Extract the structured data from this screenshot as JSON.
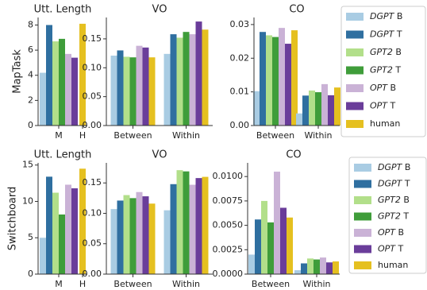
{
  "chart_data": [
    {
      "type": "bar",
      "title": "Utt. Length",
      "ylabel": "MapTask",
      "categories": [
        "M",
        "H"
      ],
      "ylim": [
        0,
        8.6
      ],
      "yticks": [
        0,
        2,
        4,
        6,
        8
      ],
      "series": [
        {
          "name": "DGPT B",
          "color": "#a9cce3",
          "values": [
            4.2,
            null
          ]
        },
        {
          "name": "DGPT T",
          "color": "#2f6fa0",
          "values": [
            8.0,
            null
          ]
        },
        {
          "name": "GPT2 B",
          "color": "#b2df8a",
          "values": [
            6.7,
            null
          ]
        },
        {
          "name": "GPT2 T",
          "color": "#3f9d3a",
          "values": [
            6.9,
            null
          ]
        },
        {
          "name": "OPT B",
          "color": "#cab2d6",
          "values": [
            5.7,
            null
          ]
        },
        {
          "name": "OPT T",
          "color": "#6a3d9a",
          "values": [
            5.4,
            null
          ]
        },
        {
          "name": "human",
          "color": "#e5c020",
          "values": [
            null,
            8.1
          ]
        }
      ]
    },
    {
      "type": "bar",
      "title": "VO",
      "categories": [
        "Between",
        "Within"
      ],
      "ylim": [
        0,
        0.187
      ],
      "yticks": [
        {
          "value": 0,
          "label": "0.00"
        },
        0.05,
        {
          "value": 0.1,
          "label": "0.10"
        },
        0.15
      ],
      "series": [
        {
          "name": "DGPT B",
          "color": "#a9cce3",
          "values": [
            0.121,
            0.124
          ]
        },
        {
          "name": "DGPT T",
          "color": "#2f6fa0",
          "values": [
            0.13,
            0.158
          ]
        },
        {
          "name": "GPT2 B",
          "color": "#b2df8a",
          "values": [
            0.119,
            0.152
          ]
        },
        {
          "name": "GPT2 T",
          "color": "#3f9d3a",
          "values": [
            0.118,
            0.162
          ]
        },
        {
          "name": "OPT B",
          "color": "#cab2d6",
          "values": [
            0.138,
            0.158
          ]
        },
        {
          "name": "OPT T",
          "color": "#6a3d9a",
          "values": [
            0.135,
            0.18
          ]
        },
        {
          "name": "human",
          "color": "#e5c020",
          "values": [
            0.118,
            0.166
          ]
        }
      ]
    },
    {
      "type": "bar",
      "title": "CO",
      "categories": [
        "Between",
        "Within"
      ],
      "legend": true,
      "ylim": [
        0,
        0.0321
      ],
      "yticks": [
        {
          "value": 0,
          "label": "0.00"
        },
        0.01,
        0.02,
        0.03
      ],
      "series": [
        {
          "name": "DGPT B",
          "color": "#a9cce3",
          "values": [
            0.0102,
            0.0036
          ]
        },
        {
          "name": "DGPT T",
          "color": "#2f6fa0",
          "values": [
            0.0278,
            0.0089
          ]
        },
        {
          "name": "GPT2 B",
          "color": "#b2df8a",
          "values": [
            0.0268,
            0.0104
          ]
        },
        {
          "name": "GPT2 T",
          "color": "#3f9d3a",
          "values": [
            0.0263,
            0.0099
          ]
        },
        {
          "name": "OPT B",
          "color": "#cab2d6",
          "values": [
            0.029,
            0.0123
          ]
        },
        {
          "name": "OPT T",
          "color": "#6a3d9a",
          "values": [
            0.0243,
            0.009
          ]
        },
        {
          "name": "human",
          "color": "#e5c020",
          "values": [
            0.0283,
            0.0113
          ]
        }
      ]
    },
    {
      "type": "bar",
      "title": "Utt. Length",
      "ylabel": "Switchboard",
      "categories": [
        "M",
        "H"
      ],
      "ylim": [
        0,
        15.3
      ],
      "yticks": [
        0,
        5,
        10,
        15
      ],
      "series": [
        {
          "name": "DGPT B",
          "color": "#a9cce3",
          "values": [
            5.0,
            null
          ]
        },
        {
          "name": "DGPT T",
          "color": "#2f6fa0",
          "values": [
            13.4,
            null
          ]
        },
        {
          "name": "GPT2 B",
          "color": "#b2df8a",
          "values": [
            11.2,
            null
          ]
        },
        {
          "name": "GPT2 T",
          "color": "#3f9d3a",
          "values": [
            8.2,
            null
          ]
        },
        {
          "name": "OPT B",
          "color": "#cab2d6",
          "values": [
            12.3,
            null
          ]
        },
        {
          "name": "OPT T",
          "color": "#6a3d9a",
          "values": [
            11.8,
            null
          ]
        },
        {
          "name": "human",
          "color": "#e5c020",
          "values": [
            null,
            14.5
          ]
        }
      ]
    },
    {
      "type": "bar",
      "title": "VO",
      "categories": [
        "Between",
        "Within"
      ],
      "ylim": [
        0,
        0.183
      ],
      "yticks": [
        {
          "value": 0,
          "label": "0.00"
        },
        0.05,
        {
          "value": 0.1,
          "label": "0.10"
        },
        0.15
      ],
      "series": [
        {
          "name": "DGPT B",
          "color": "#a9cce3",
          "values": [
            0.107,
            0.105
          ]
        },
        {
          "name": "DGPT T",
          "color": "#2f6fa0",
          "values": [
            0.121,
            0.148
          ]
        },
        {
          "name": "GPT2 B",
          "color": "#b2df8a",
          "values": [
            0.13,
            0.171
          ]
        },
        {
          "name": "GPT2 T",
          "color": "#3f9d3a",
          "values": [
            0.125,
            0.169
          ]
        },
        {
          "name": "OPT B",
          "color": "#cab2d6",
          "values": [
            0.135,
            0.147
          ]
        },
        {
          "name": "OPT T",
          "color": "#6a3d9a",
          "values": [
            0.128,
            0.158
          ]
        },
        {
          "name": "human",
          "color": "#e5c020",
          "values": [
            0.116,
            0.16
          ]
        }
      ]
    },
    {
      "type": "bar",
      "title": "CO",
      "categories": [
        "Between",
        "Within"
      ],
      "legend": true,
      "ylim": [
        0,
        0.0114
      ],
      "yticks": [
        {
          "value": 0,
          "label": "0.0000"
        },
        0.0025,
        {
          "value": 0.005,
          "label": "0.0050"
        },
        0.0075,
        {
          "value": 0.01,
          "label": "0.0100"
        }
      ],
      "series": [
        {
          "name": "DGPT B",
          "color": "#a9cce3",
          "values": [
            0.002,
            0.0004
          ]
        },
        {
          "name": "DGPT T",
          "color": "#2f6fa0",
          "values": [
            0.0056,
            0.0011
          ]
        },
        {
          "name": "GPT2 B",
          "color": "#b2df8a",
          "values": [
            0.0075,
            0.0016
          ]
        },
        {
          "name": "GPT2 T",
          "color": "#3f9d3a",
          "values": [
            0.0053,
            0.0015
          ]
        },
        {
          "name": "OPT B",
          "color": "#cab2d6",
          "values": [
            0.0105,
            0.0017
          ]
        },
        {
          "name": "OPT T",
          "color": "#6a3d9a",
          "values": [
            0.0068,
            0.0012
          ]
        },
        {
          "name": "human",
          "color": "#e5c020",
          "values": [
            0.0058,
            0.0013
          ]
        }
      ]
    }
  ]
}
